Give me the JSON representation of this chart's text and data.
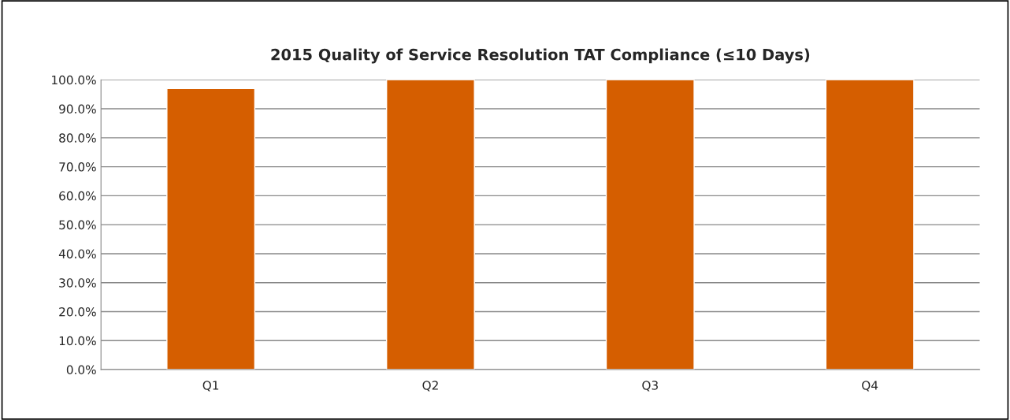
{
  "chart_data": {
    "type": "bar",
    "title": "2015 Quality of Service Resolution TAT Compliance (≤10 Days)",
    "categories": [
      "Q1",
      "Q2",
      "Q3",
      "Q4"
    ],
    "values": [
      97.0,
      100,
      100,
      100
    ],
    "color": "#d55e00",
    "ylim": [
      0,
      100
    ],
    "yticks": [
      {
        "value": 0,
        "label": "0.0%"
      },
      {
        "value": 10,
        "label": "10.0%"
      },
      {
        "value": 20,
        "label": "20.0%"
      },
      {
        "value": 30,
        "label": "30.0%"
      },
      {
        "value": 40,
        "label": "40.0%"
      },
      {
        "value": 50,
        "label": "50.0%"
      },
      {
        "value": 60,
        "label": "60.0%"
      },
      {
        "value": 70,
        "label": "70.0%"
      },
      {
        "value": 80,
        "label": "80.0%"
      },
      {
        "value": 90,
        "label": "90.0%"
      },
      {
        "value": 100,
        "label": "100.0%"
      }
    ],
    "grid": "y",
    "legend": false
  }
}
